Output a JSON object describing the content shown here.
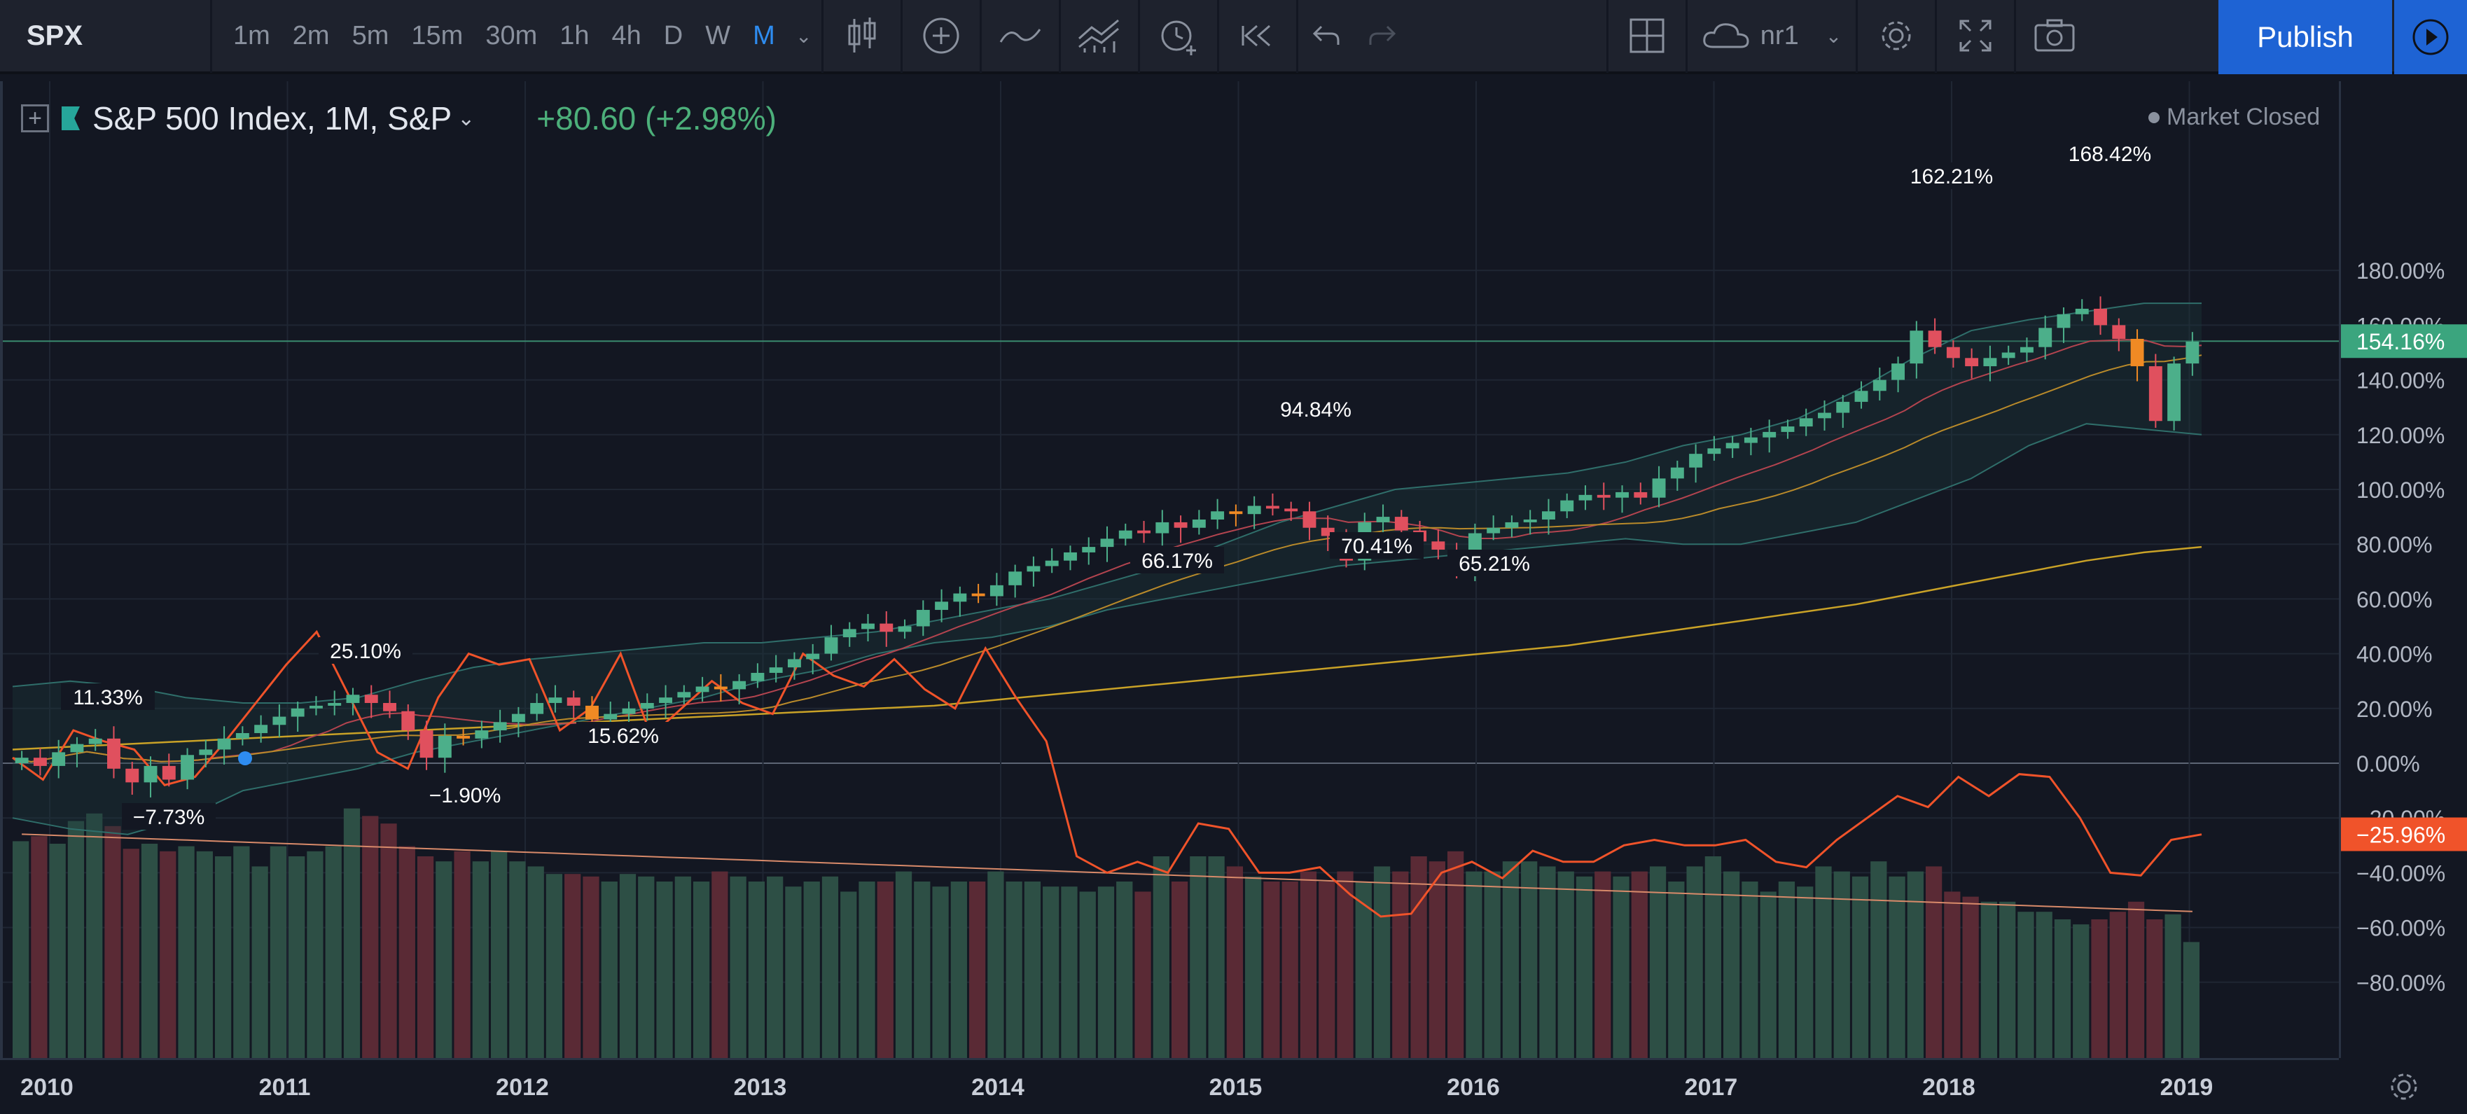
{
  "toolbar": {
    "symbol": "SPX",
    "intervals": [
      "1m",
      "2m",
      "5m",
      "15m",
      "30m",
      "1h",
      "4h",
      "D",
      "W",
      "M"
    ],
    "active_interval": "M",
    "layout_name": "nr1",
    "publish_label": "Publish"
  },
  "legend": {
    "title": "S&P 500 Index, 1M, S&P",
    "change": "+80.60 (+2.98%)",
    "market_status": "Market Closed"
  },
  "colors": {
    "up": "#4caf8a",
    "down": "#e0505e",
    "hollow": "#f08a24",
    "orange_line": "#f0532a",
    "accent": "#1e63d4"
  },
  "price_axis": {
    "ticks": [
      "180.00%",
      "160.00%",
      "140.00%",
      "120.00%",
      "100.00%",
      "80.00%",
      "60.00%",
      "40.00%",
      "20.00%",
      "0.00%",
      "−20.00%",
      "−40.00%",
      "−60.00%",
      "−80.00%"
    ],
    "current_label": "154.16%",
    "oscillator_label": "−25.96%"
  },
  "time_axis": {
    "labels": [
      "2010",
      "2011",
      "2012",
      "2013",
      "2014",
      "2015",
      "2016",
      "2017",
      "2018",
      "2019"
    ]
  },
  "annotations": [
    {
      "text": "11.33%"
    },
    {
      "text": "−7.73%"
    },
    {
      "text": "25.10%"
    },
    {
      "text": "−1.90%"
    },
    {
      "text": "15.62%"
    },
    {
      "text": "66.17%"
    },
    {
      "text": "94.84%"
    },
    {
      "text": "70.41%"
    },
    {
      "text": "65.21%"
    },
    {
      "text": "162.21%"
    },
    {
      "text": "168.42%"
    }
  ],
  "chart_data": {
    "type": "candlestick",
    "title": "S&P 500 Index, 1M, S&P",
    "x_range": [
      "2010-01",
      "2019-02"
    ],
    "y_unit": "%",
    "ylim": [
      -80,
      190
    ],
    "series_monthly_close_pct": [
      2,
      -1,
      4,
      7,
      9,
      -2,
      -7,
      -1,
      -6,
      3,
      5,
      9,
      11,
      14,
      17,
      20,
      21,
      22,
      25,
      22,
      19,
      12,
      2,
      10,
      9,
      12,
      15,
      18,
      22,
      24,
      21,
      16,
      18,
      20,
      22,
      24,
      26,
      28,
      27,
      30,
      33,
      35,
      38,
      40,
      46,
      49,
      51,
      48,
      50,
      56,
      59,
      62,
      61,
      65,
      70,
      72,
      74,
      77,
      79,
      82,
      85,
      84,
      88,
      86,
      89,
      92,
      91,
      94,
      93,
      92,
      86,
      83,
      74,
      88,
      90,
      85,
      81,
      78,
      72,
      84,
      86,
      88,
      89,
      92,
      96,
      98,
      97,
      99,
      97,
      104,
      108,
      113,
      115,
      117,
      119,
      121,
      123,
      126,
      128,
      132,
      136,
      140,
      146,
      158,
      152,
      148,
      145,
      148,
      150,
      152,
      159,
      164,
      166,
      160,
      155,
      145,
      125,
      146,
      154
    ],
    "bollinger_upper": [
      28,
      30,
      28,
      24,
      22,
      22,
      24,
      30,
      35,
      38,
      40,
      42,
      44,
      44,
      46,
      48,
      52,
      56,
      60,
      66,
      72,
      80,
      88,
      94,
      100,
      102,
      104,
      106,
      110,
      116,
      120,
      126,
      136,
      148,
      158,
      162,
      165,
      168,
      168
    ],
    "bollinger_lower": [
      -20,
      -24,
      -26,
      -20,
      -10,
      -6,
      -2,
      4,
      8,
      12,
      16,
      20,
      24,
      30,
      34,
      40,
      44,
      46,
      50,
      56,
      60,
      64,
      68,
      72,
      74,
      76,
      78,
      80,
      82,
      80,
      80,
      84,
      88,
      96,
      104,
      116,
      124,
      122,
      120
    ],
    "ma_long": [
      5,
      6,
      7,
      8,
      9,
      10,
      11,
      12,
      13,
      14,
      15,
      16,
      17,
      18,
      19,
      20,
      21,
      23,
      25,
      27,
      29,
      31,
      33,
      35,
      37,
      39,
      41,
      43,
      46,
      49,
      52,
      55,
      58,
      62,
      66,
      70,
      74,
      77,
      79
    ],
    "oscillator_pct": [
      2,
      -6,
      12,
      8,
      5,
      -8,
      -5,
      8,
      22,
      36,
      48,
      26,
      4,
      -2,
      24,
      40,
      36,
      38,
      12,
      20,
      40,
      10,
      20,
      30,
      22,
      18,
      40,
      32,
      28,
      38,
      27,
      20,
      42,
      24,
      8,
      -34,
      -40,
      -36,
      -40,
      -22,
      -24,
      -40,
      -40,
      -38,
      -48,
      -56,
      -55,
      -40,
      -36,
      -42,
      -32,
      -36,
      -36,
      -30,
      -28,
      -30,
      -30,
      -28,
      -36,
      -38,
      -28,
      -20,
      -12,
      -16,
      -5,
      -12,
      -4,
      -5,
      -20,
      -40,
      -41,
      -28,
      -26
    ],
    "volume_norm": [
      0.86,
      0.88,
      0.85,
      0.94,
      0.97,
      0.92,
      0.83,
      0.85,
      0.82,
      0.84,
      0.82,
      0.8,
      0.84,
      0.76,
      0.84,
      0.8,
      0.82,
      0.84,
      0.99,
      0.96,
      0.93,
      0.84,
      0.8,
      0.78,
      0.82,
      0.78,
      0.82,
      0.78,
      0.76,
      0.73,
      0.73,
      0.72,
      0.7,
      0.73,
      0.72,
      0.7,
      0.72,
      0.7,
      0.74,
      0.72,
      0.7,
      0.72,
      0.68,
      0.7,
      0.72,
      0.66,
      0.7,
      0.7,
      0.74,
      0.7,
      0.68,
      0.7,
      0.7,
      0.74,
      0.7,
      0.7,
      0.68,
      0.68,
      0.66,
      0.68,
      0.7,
      0.66,
      0.8,
      0.7,
      0.8,
      0.8,
      0.76,
      0.72,
      0.7,
      0.7,
      0.74,
      0.7,
      0.74,
      0.7,
      0.76,
      0.74,
      0.8,
      0.78,
      0.82,
      0.74,
      0.74,
      0.78,
      0.78,
      0.76,
      0.74,
      0.72,
      0.74,
      0.72,
      0.74,
      0.76,
      0.7,
      0.76,
      0.8,
      0.74,
      0.7,
      0.66,
      0.7,
      0.68,
      0.76,
      0.74,
      0.72,
      0.78,
      0.72,
      0.74,
      0.76,
      0.66,
      0.64,
      0.62,
      0.62,
      0.58,
      0.58,
      0.55,
      0.53,
      0.55,
      0.58,
      0.62,
      0.55,
      0.57,
      0.46
    ],
    "grid": true
  }
}
